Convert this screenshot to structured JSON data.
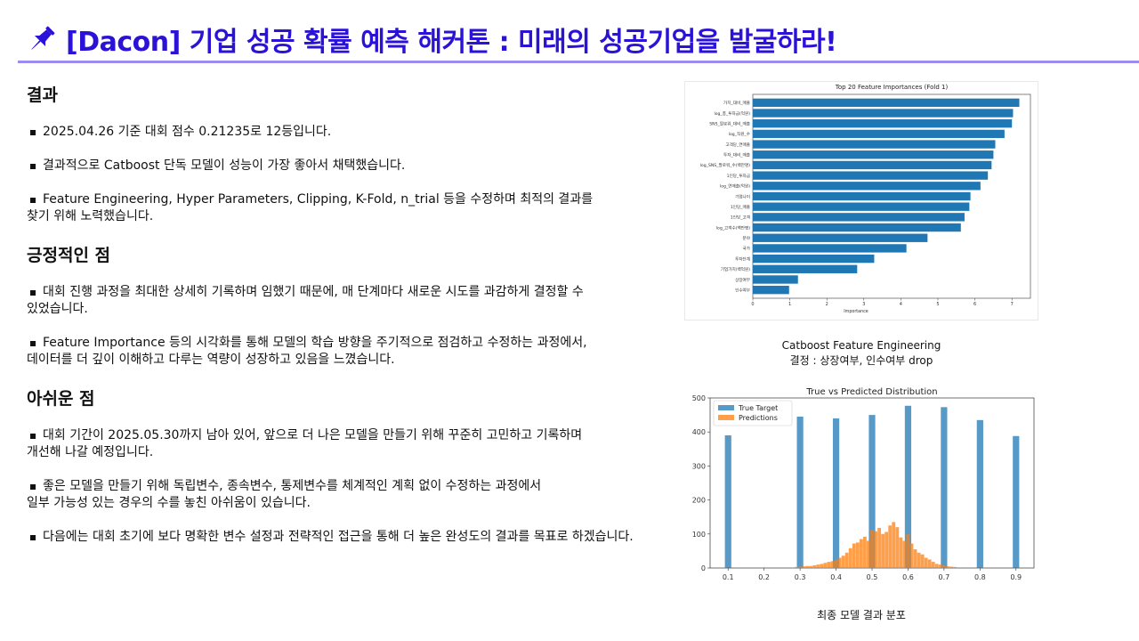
{
  "header": {
    "title": "[Dacon] 기업 성공 확률 예측 해커톤 : 미래의 성공기업을 발굴하라!",
    "icon": "pushpin-icon",
    "accent": "#2a12d6",
    "divider_color": "#9c8cf0"
  },
  "sections": [
    {
      "heading": "결과",
      "bullets": [
        [
          "2025.04.26 기준 대회 점수 0.21235로 12등입니다."
        ],
        [
          "결과적으로 Catboost 단독 모델이 성능이 가장 좋아서 채택했습니다."
        ],
        [
          "Feature Engineering, Hyper Parameters, Clipping, K-Fold, n_trial 등을 수정하며 최적의 결과를",
          "찾기 위해 노력했습니다."
        ]
      ]
    },
    {
      "heading": "긍정적인 점",
      "bullets": [
        [
          "대회 진행 과정을 최대한 상세히 기록하며 임했기 때문에, 매 단계마다 새로운 시도를 과감하게 결정할 수",
          "있었습니다."
        ],
        [
          "Feature Importance 등의 시각화를 통해 모델의 학습 방향을 주기적으로 점검하고 수정하는 과정에서,",
          "데이터를 더 깊이 이해하고 다루는 역량이 성장하고 있음을 느꼈습니다."
        ]
      ]
    },
    {
      "heading": "아쉬운 점",
      "bullets": [
        [
          "대회 기간이 2025.05.30까지 남아 있어, 앞으로 더 나은 모델을 만들기 위해 꾸준히 고민하고 기록하며",
          "개선해 나갈 예정입니다."
        ],
        [
          "좋은 모델을 만들기 위해 독립변수, 종속변수, 통제변수를 체계적인 계획 없이 수정하는 과정에서",
          "일부 가능성 있는 경우의 수를 놓친 아쉬움이 있습니다."
        ],
        [
          "다음에는 대회 초기에 보다 명확한 변수 설정과 전략적인 접근을 통해 더 높은 완성도의 결과를 목표로 하겠습니다."
        ]
      ]
    }
  ],
  "captions": {
    "fig1_line1": "Catboost Feature Engineering",
    "fig1_line2": "결정 : 상장여부, 인수여부 drop",
    "fig2": "최종 모델 결과 분포"
  },
  "chart_data": [
    {
      "type": "bar",
      "orientation": "horizontal",
      "title": "Top 20 Feature Importances (Fold 1)",
      "xlabel": "Importance",
      "ylabel": "",
      "xlim": [
        0,
        7.5
      ],
      "xticks": [
        0,
        1,
        2,
        3,
        4,
        5,
        6,
        7
      ],
      "bar_color": "#1f77b4",
      "categories": [
        "가치_대비_매출",
        "log_총_투자금(억원)",
        "SNS_팔로워_대비_매출",
        "log_직원_수",
        "고객당_연매출",
        "투자_대비_매출",
        "log_SNS_팔로워_수(백만명)",
        "1인당_투자금",
        "log_연매출(억원)",
        "기업나이",
        "1인당_매출",
        "1인당_고객",
        "log_고객수(백만명)",
        "분야",
        "국가",
        "투자단계",
        "기업가치(백억원)",
        "상장여부",
        "인수여부"
      ],
      "values": [
        7.2,
        7.03,
        7.0,
        6.8,
        6.55,
        6.5,
        6.45,
        6.35,
        6.15,
        5.88,
        5.85,
        5.72,
        5.62,
        4.72,
        4.15,
        3.28,
        2.82,
        1.22,
        0.98
      ]
    },
    {
      "type": "bar",
      "title": "True vs Predicted Distribution",
      "xlabel": "",
      "ylabel": "",
      "ylim": [
        0,
        500
      ],
      "yticks": [
        0,
        100,
        200,
        300,
        400,
        500
      ],
      "xticks": [
        0.1,
        0.2,
        0.3,
        0.4,
        0.5,
        0.6,
        0.7,
        0.8,
        0.9
      ],
      "legend_position": "top-left",
      "series": [
        {
          "name": "True Target",
          "color": "#1f77b4",
          "x": [
            0.1,
            0.3,
            0.4,
            0.5,
            0.6,
            0.7,
            0.8,
            0.9
          ],
          "values": [
            390,
            445,
            440,
            450,
            477,
            473,
            435,
            388
          ]
        },
        {
          "name": "Predictions",
          "color": "#ff7f0e",
          "x": [
            0.29,
            0.3,
            0.31,
            0.32,
            0.33,
            0.34,
            0.35,
            0.36,
            0.37,
            0.38,
            0.39,
            0.4,
            0.41,
            0.42,
            0.43,
            0.44,
            0.45,
            0.46,
            0.47,
            0.48,
            0.49,
            0.5,
            0.51,
            0.52,
            0.53,
            0.54,
            0.55,
            0.56,
            0.57,
            0.58,
            0.59,
            0.6,
            0.61,
            0.62,
            0.63,
            0.64,
            0.65,
            0.66,
            0.67,
            0.68,
            0.69,
            0.7,
            0.71,
            0.72,
            0.73
          ],
          "values": [
            3,
            4,
            5,
            6,
            6,
            8,
            10,
            12,
            15,
            18,
            20,
            24,
            30,
            36,
            45,
            58,
            72,
            75,
            85,
            92,
            80,
            112,
            108,
            118,
            100,
            106,
            125,
            135,
            120,
            90,
            80,
            100,
            72,
            55,
            45,
            40,
            30,
            25,
            18,
            12,
            10,
            8,
            5,
            4,
            3
          ]
        }
      ]
    }
  ]
}
